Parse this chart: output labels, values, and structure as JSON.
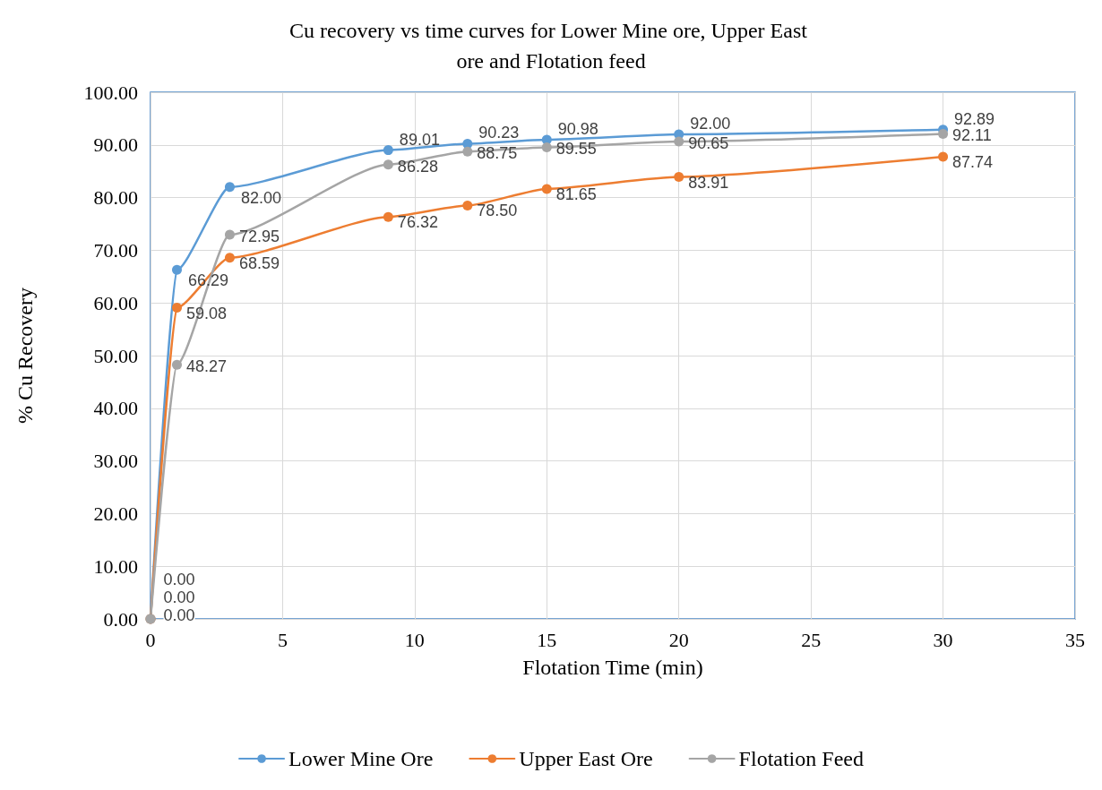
{
  "chart_data": {
    "type": "line",
    "title": "Cu recovery vs time curves for Lower Mine ore, Upper East ore and Flotation feed",
    "xlabel": "Flotation Time (min)",
    "ylabel": "% Cu Recovery",
    "x": [
      0,
      1,
      3,
      9,
      12,
      15,
      20,
      30
    ],
    "series": [
      {
        "name": "Lower Mine Ore",
        "color": "#5b9bd5",
        "values": [
          0,
          66.29,
          82.0,
          89.01,
          90.23,
          90.98,
          92.0,
          92.89
        ],
        "value_labels": [
          "0.00",
          "66.29",
          "82.00",
          "89.01",
          "90.23",
          "90.98",
          "92.00",
          "92.89"
        ]
      },
      {
        "name": "Upper East Ore",
        "color": "#ed7d31",
        "values": [
          0,
          59.08,
          68.59,
          76.32,
          78.5,
          81.65,
          83.91,
          87.74
        ],
        "value_labels": [
          "0.00",
          "59.08",
          "68.59",
          "76.32",
          "78.50",
          "81.65",
          "83.91",
          "87.74"
        ]
      },
      {
        "name": "Flotation Feed",
        "color": "#a5a5a5",
        "values": [
          0,
          48.27,
          72.95,
          86.28,
          88.75,
          89.55,
          90.65,
          92.11
        ],
        "value_labels": [
          "0.00",
          "48.27",
          "72.95",
          "86.28",
          "88.75",
          "89.55",
          "90.65",
          "92.11"
        ]
      }
    ],
    "xlim": [
      0,
      35
    ],
    "xticks": [
      0,
      5,
      10,
      15,
      20,
      25,
      30,
      35
    ],
    "ylim": [
      0,
      100
    ],
    "yticks": [
      {
        "value": 0,
        "label": "0.00"
      },
      {
        "value": 10,
        "label": "10.00"
      },
      {
        "value": 20,
        "label": "20.00"
      },
      {
        "value": 30,
        "label": "30.00"
      },
      {
        "value": 40,
        "label": "40.00"
      },
      {
        "value": 50,
        "label": "50.00"
      },
      {
        "value": 60,
        "label": "60.00"
      },
      {
        "value": 70,
        "label": "70.00"
      },
      {
        "value": 80,
        "label": "80.00"
      },
      {
        "value": 90,
        "label": "90.00"
      },
      {
        "value": 100,
        "label": "100.00"
      }
    ],
    "grid": true,
    "legend": "bottom",
    "marker": "circle",
    "line_style": "solid"
  }
}
